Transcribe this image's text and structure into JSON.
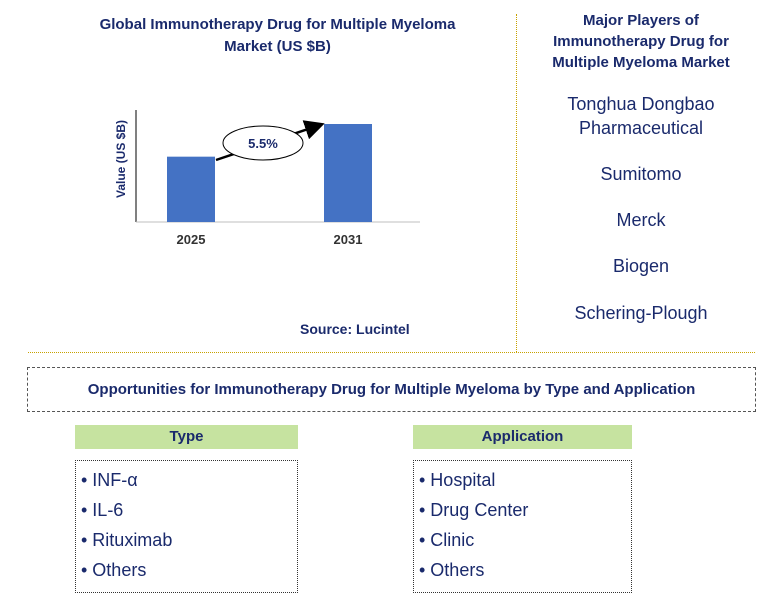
{
  "chart_data": {
    "type": "bar",
    "title": "Global Immunotherapy Drug for Multiple Myeloma Market (US $B)",
    "ylabel": "Value (US $B)",
    "categories": [
      "2025",
      "2031"
    ],
    "values": [
      1.0,
      1.5
    ],
    "ylim": [
      0,
      1.5
    ],
    "bar_color": "#4472c4",
    "annotation": "5.5%",
    "source": "Source: Lucintel"
  },
  "players": {
    "title": "Major Players of Immunotherapy Drug for Multiple Myeloma Market",
    "items": [
      "Tonghua Dongbao Pharmaceutical",
      "Sumitomo",
      "Merck",
      "Biogen",
      "Schering-Plough"
    ]
  },
  "opportunities": {
    "title": "Opportunities for Immunotherapy Drug for Multiple Myeloma by Type and Application"
  },
  "type_segment": {
    "header": "Type",
    "items": [
      "• INF-α",
      "• IL-6",
      "• Rituximab",
      "• Others"
    ]
  },
  "application_segment": {
    "header": "Application",
    "items": [
      "• Hospital",
      "• Drug Center",
      "• Clinic",
      "• Others"
    ]
  }
}
